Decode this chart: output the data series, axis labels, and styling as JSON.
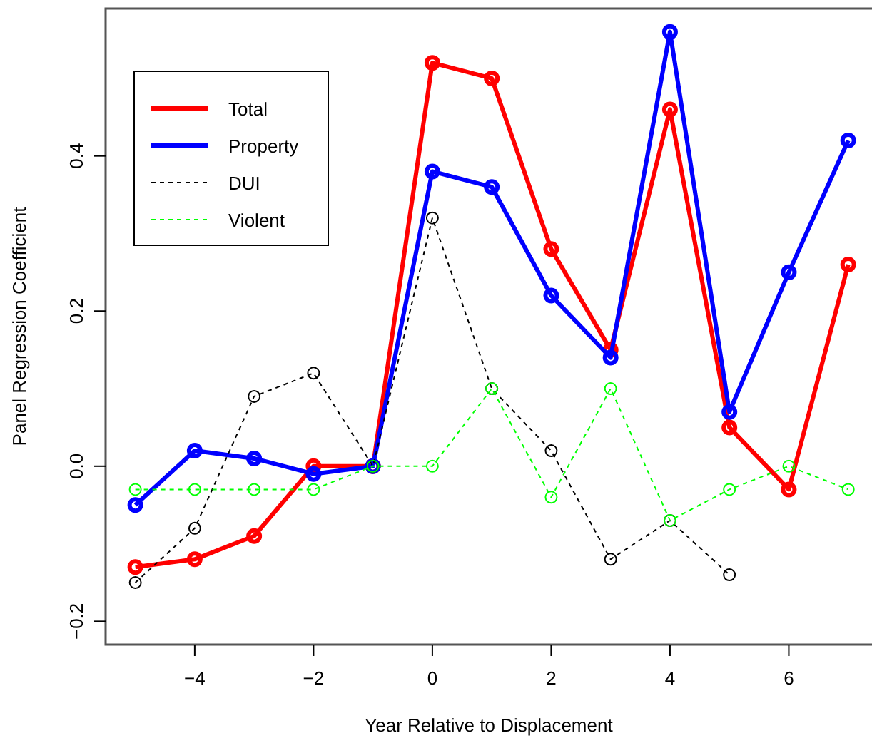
{
  "chart_data": {
    "type": "line",
    "xlabel": "Year Relative to Displacement",
    "ylabel": "Panel Regression Coefficient",
    "x": [
      -5,
      -4,
      -3,
      -2,
      -1,
      0,
      1,
      2,
      3,
      4,
      5,
      6,
      7
    ],
    "xlim": [
      -5.5,
      7.4
    ],
    "ylim": [
      -0.23,
      0.59
    ],
    "xticks": [
      {
        "value": -4,
        "label": "−4"
      },
      {
        "value": -2,
        "label": "−2"
      },
      0,
      2,
      4,
      6
    ],
    "yticks": [
      {
        "value": -0.2,
        "label": "−0.2"
      },
      {
        "value": 0,
        "label": "0.0"
      },
      {
        "value": 0.2,
        "label": "0.2"
      },
      {
        "value": 0.4,
        "label": "0.4"
      }
    ],
    "legend": "top left",
    "marker": "circle",
    "grid": false,
    "series": [
      {
        "name": "Total",
        "color": "#ff0000",
        "line_style": "solid",
        "values": [
          -0.13,
          -0.12,
          -0.09,
          0.0,
          0.0,
          0.52,
          0.5,
          0.28,
          0.15,
          0.46,
          0.05,
          -0.03,
          0.26
        ]
      },
      {
        "name": "Property",
        "color": "#0000ff",
        "line_style": "solid",
        "values": [
          -0.05,
          0.02,
          0.01,
          -0.01,
          0.0,
          0.38,
          0.36,
          0.22,
          0.14,
          0.56,
          0.07,
          0.25,
          0.42
        ]
      },
      {
        "name": "DUI",
        "color": "#000000",
        "line_style": "dashed",
        "values": [
          -0.15,
          -0.08,
          0.09,
          0.12,
          0.0,
          0.32,
          0.1,
          0.02,
          -0.12,
          -0.07,
          -0.14,
          null,
          null
        ]
      },
      {
        "name": "Violent",
        "color": "#00ff00",
        "line_style": "dashed",
        "values": [
          -0.03,
          -0.03,
          -0.03,
          -0.03,
          0.0,
          0.0,
          0.1,
          -0.04,
          0.1,
          -0.07,
          -0.03,
          0.0,
          -0.03
        ]
      }
    ]
  }
}
